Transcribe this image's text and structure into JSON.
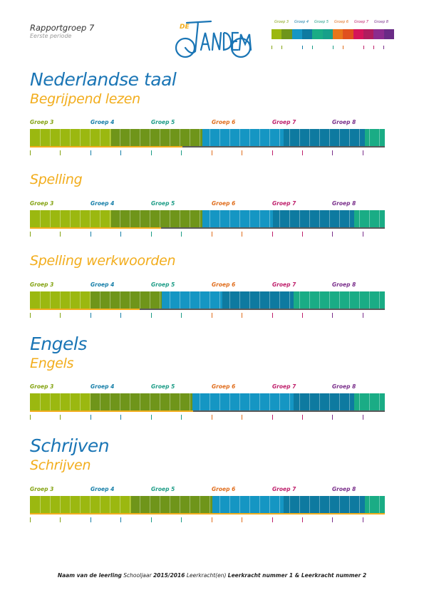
{
  "header": {
    "title": "Rapportgroep 7",
    "subtitle": "Eerste periode",
    "logo_text": "DE TANDEM"
  },
  "colors": {
    "g3a": "#9bb810",
    "g3b": "#8aab0e",
    "g4a": "#6f951a",
    "g4b": "#7a9c1a",
    "g5a": "#1596c3",
    "g5b": "#1289b6",
    "g6a": "#0e7aa0",
    "g6b": "#11718f",
    "g7": "#1aac85",
    "lab3": "#84a312",
    "lab4": "#157ea8",
    "lab5": "#1c9c86",
    "lab6": "#e06d1c",
    "lab7": "#bf1f6b",
    "lab8": "#7a2f8b",
    "tick": "#f2ad1d"
  },
  "legend": {
    "labels": [
      "Groep 3",
      "Groep 4",
      "Groep 5",
      "Groep 6",
      "Groep 7",
      "Groep 8"
    ],
    "swatches": [
      "#9bb810",
      "#6f951a",
      "#1596c3",
      "#0e7aa0",
      "#1aac85",
      "#17a08a",
      "#e8761a",
      "#e0501e",
      "#d5145a",
      "#b01d5e",
      "#8c2c8e",
      "#6a2b86"
    ]
  },
  "group_labels": [
    "Groep 3",
    "Groep 4",
    "Groep 5",
    "Groep 6",
    "Groep 7",
    "Groep 8"
  ],
  "sections": [
    {
      "title": "Nederlandse taal",
      "subtitle": "Begrijpend lezen",
      "level_fraction": 0.43
    },
    {
      "title": "",
      "subtitle": "Spelling",
      "level_fraction": 0.37
    },
    {
      "title": "",
      "subtitle": "Spelling werkwoorden",
      "level_fraction": 0.31
    },
    {
      "title": "Engels",
      "subtitle": "Engels",
      "level_fraction": 0.46
    },
    {
      "title": "Schrijven",
      "subtitle": "Schrijven",
      "level_fraction": 1.0
    }
  ],
  "footer": {
    "student": "Naam van de leerling",
    "year_label": "Schooljaar",
    "year": "2015/2016",
    "teacher_label": "Leerkracht(en)",
    "teachers": "Leerkracht nummer 1 & Leerkracht nummer 2"
  }
}
